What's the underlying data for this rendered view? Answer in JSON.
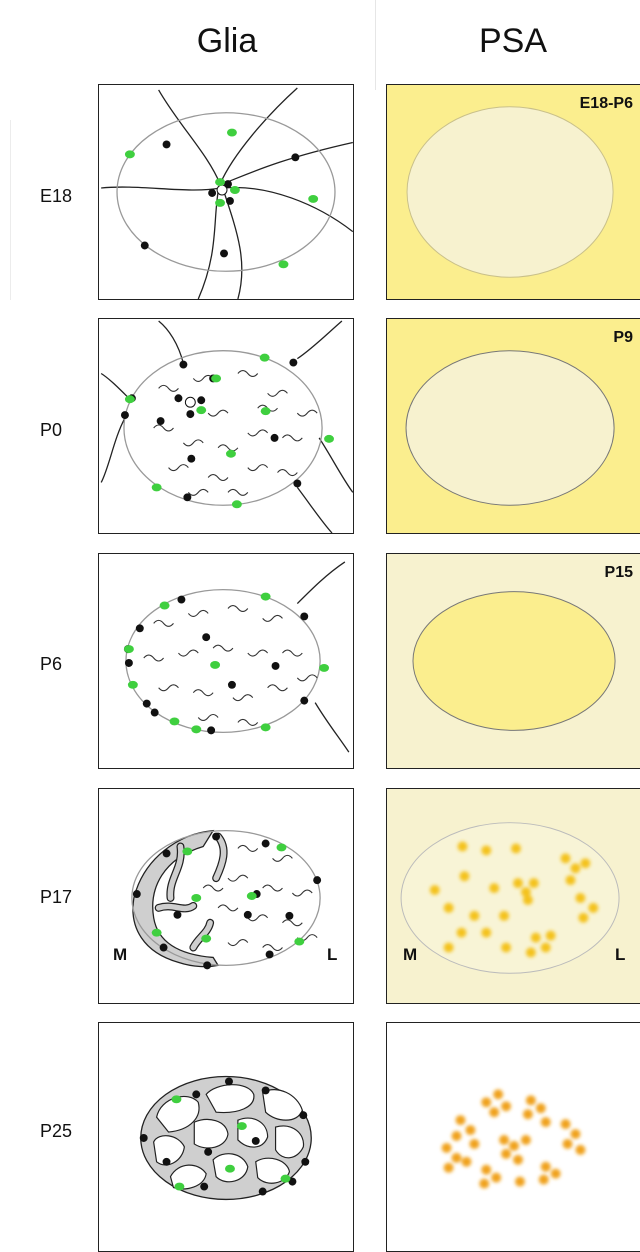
{
  "columns": {
    "glia": "Glia",
    "psa": "PSA"
  },
  "rows": [
    {
      "label": "E18",
      "psa_tag": "E18-P6"
    },
    {
      "label": "P0",
      "psa_tag": "P9"
    },
    {
      "label": "P6",
      "psa_tag": "P15"
    },
    {
      "label": "P17",
      "psa_tag": ""
    },
    {
      "label": "P25",
      "psa_tag": ""
    }
  ],
  "orientation": {
    "medial": "M",
    "lateral": "L"
  },
  "colors": {
    "glia_green": "#3fcf3f",
    "glia_black": "#111111",
    "psa_yellow": "#fbee8e",
    "psa_pale": "#f7f2cf",
    "psa_cluster": "#f0a21c"
  }
}
